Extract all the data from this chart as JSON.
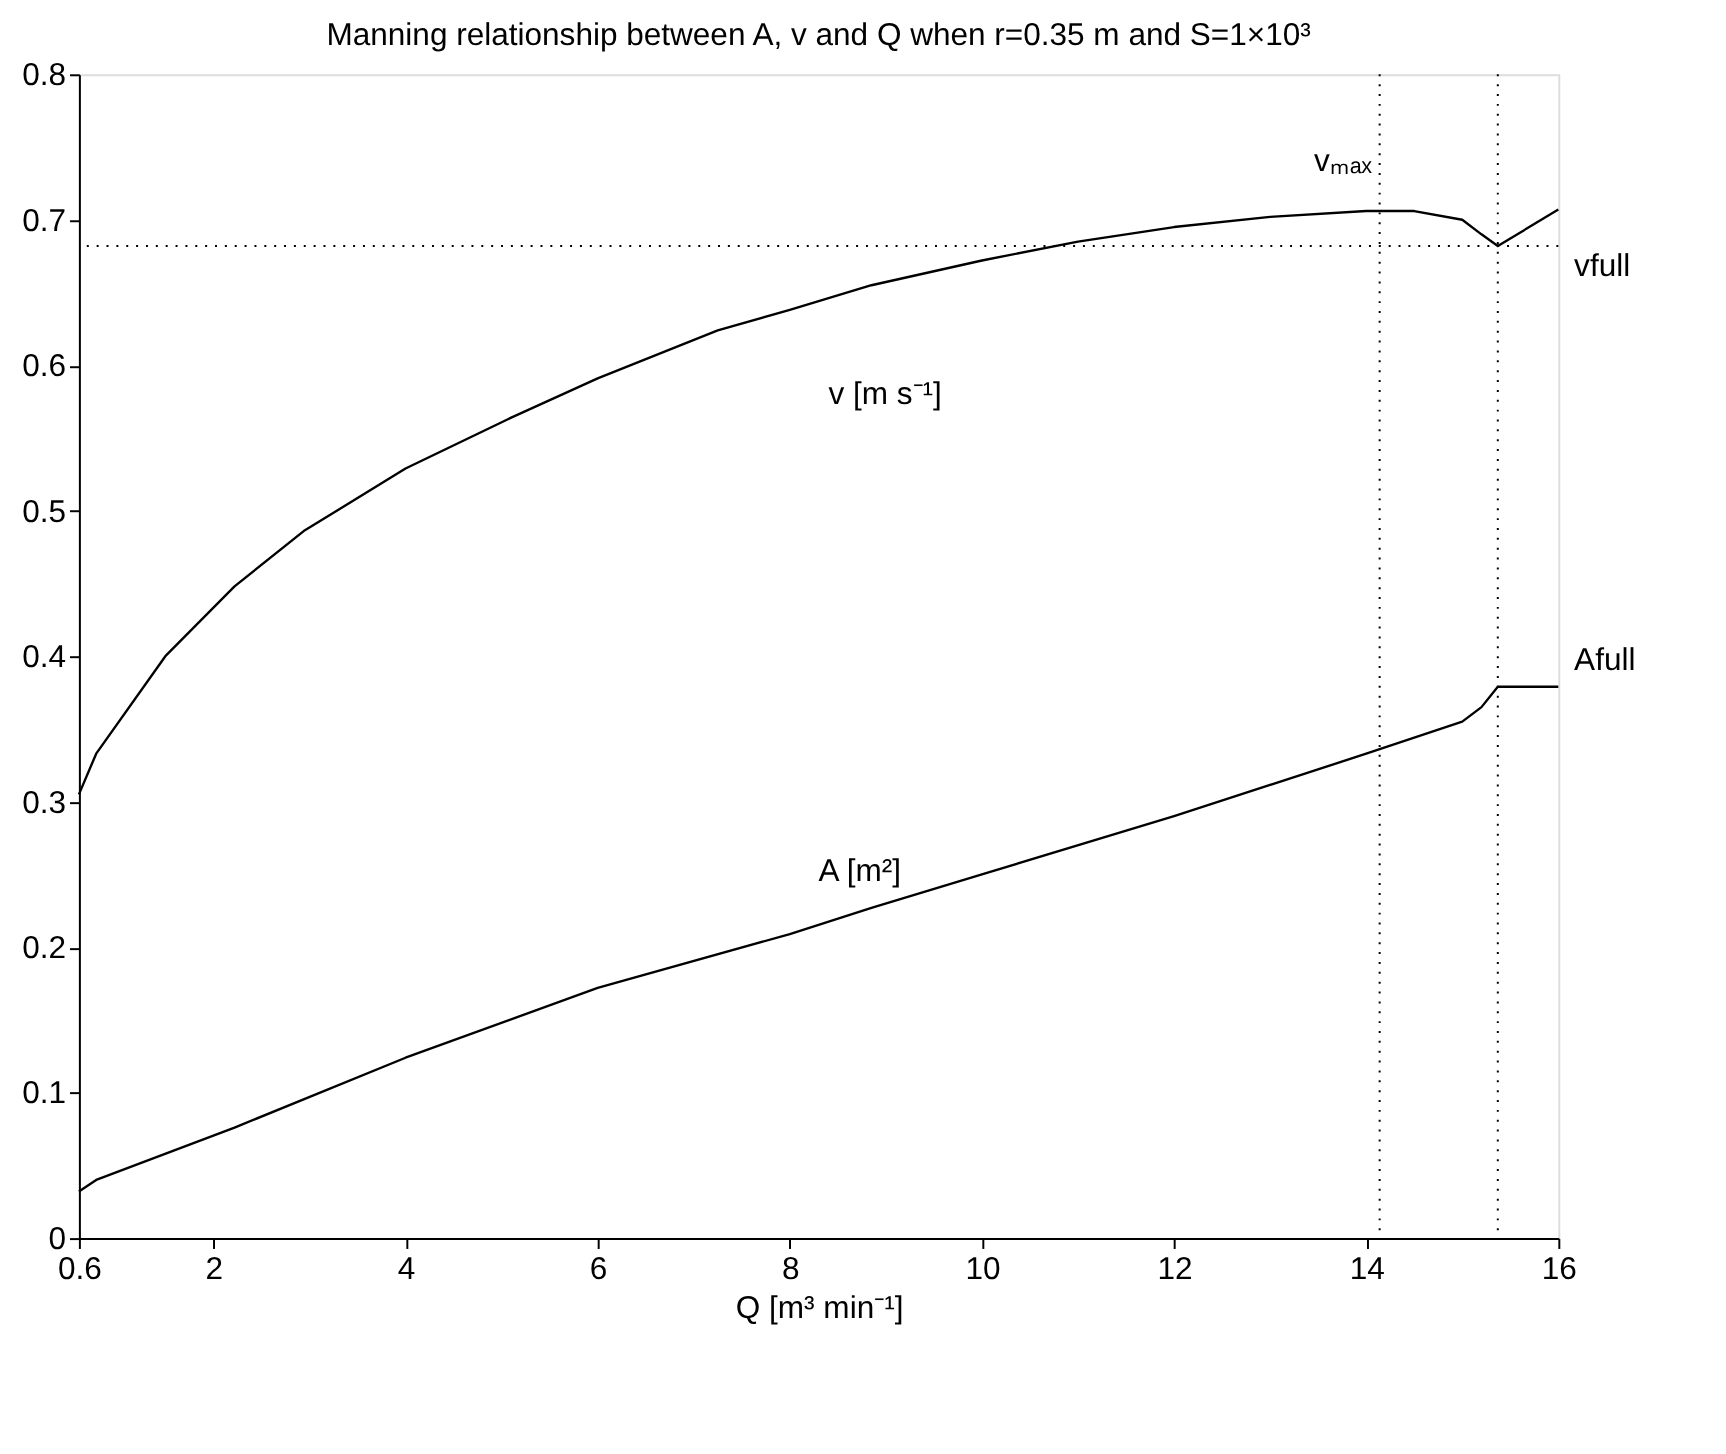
{
  "chart_data": {
    "type": "line",
    "title": "Manning relationship between A, v and Q when r=0.35 m and S=1×10³",
    "xlabel": "Q [m³ min⁻¹]",
    "xlim": [
      0.6,
      16
    ],
    "xticks": [
      0.6,
      2,
      4,
      6,
      8,
      10,
      12,
      14,
      16
    ],
    "ylim": [
      0,
      0.8
    ],
    "yticks": [
      0,
      0.1,
      0.2,
      0.3,
      0.4,
      0.5,
      0.6,
      0.7,
      0.8
    ],
    "grid": false,
    "marker": "none",
    "line_style": "solid",
    "series": [
      {
        "color": "#000000",
        "x": [
          0.6,
          0.78,
          1.5,
          2.22,
          2.94,
          4.0,
          5.1,
          6.0,
          7.25,
          8.0,
          8.85,
          10,
          11,
          12,
          13,
          14,
          14.5,
          15,
          15.2,
          15.37,
          16
        ],
        "values": [
          0.305,
          0.333,
          0.4,
          0.448,
          0.486,
          0.529,
          0.564,
          0.591,
          0.624,
          0.638,
          0.655,
          0.672,
          0.685,
          0.695,
          0.702,
          0.706,
          0.706,
          0.7,
          0.69,
          0.682,
          0.707
        ]
      },
      {
        "color": "#000000",
        "x": [
          0.6,
          0.78,
          2.22,
          4.0,
          6.0,
          8.0,
          8.85,
          10,
          12,
          14,
          15,
          15.2,
          15.37,
          16
        ],
        "values": [
          0.032,
          0.04,
          0.076,
          0.124,
          0.172,
          0.209,
          0.227,
          0.25,
          0.29,
          0.333,
          0.355,
          0.365,
          0.379,
          0.379
        ]
      }
    ],
    "ref_lines": [
      {
        "axis": "x",
        "value": 14.14,
        "label": "vₘₐₓ",
        "color": "#000000",
        "line_style": "dotted"
      },
      {
        "axis": "x",
        "value": 15.37,
        "color": "#000000",
        "line_style": "dotted"
      },
      {
        "axis": "y",
        "value": 0.682,
        "label": "vfull",
        "color": "#000000",
        "line_style": "dotted"
      }
    ],
    "annotations": [
      "v [m s⁻¹]",
      "A [m²]",
      "Afull"
    ]
  }
}
